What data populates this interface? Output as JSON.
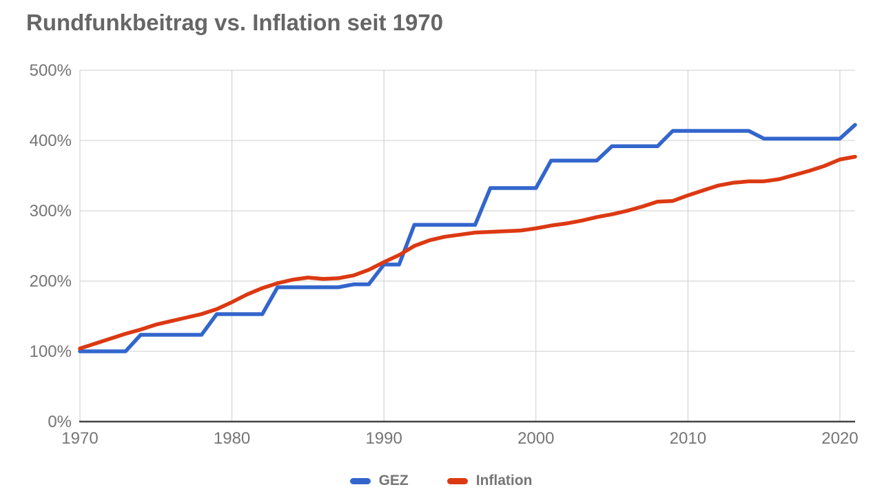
{
  "title": "Rundfunkbeitrag vs. Inflation seit 1970",
  "colors": {
    "gez_blue": "#3366cc",
    "inflation_red": "#dc3912",
    "gridline": "#cccccc",
    "axis_line": "#424242",
    "tick_text": "#757575",
    "title_text": "#666666",
    "background": "#ffffff"
  },
  "legend": {
    "position": "bottom",
    "items": [
      {
        "label": "GEZ",
        "color": "#3366cc"
      },
      {
        "label": "Inflation",
        "color": "#dc3912"
      }
    ]
  },
  "y_axis": {
    "ticks": [
      "0%",
      "100%",
      "200%",
      "300%",
      "400%",
      "500%"
    ],
    "tick_values": [
      0,
      100,
      200,
      300,
      400,
      500
    ]
  },
  "x_axis": {
    "ticks": [
      "1970",
      "1980",
      "1990",
      "2000",
      "2010",
      "2020"
    ],
    "tick_values": [
      1970,
      1980,
      1990,
      2000,
      2010,
      2020
    ]
  },
  "chart_data": {
    "type": "line",
    "title": "Rundfunkbeitrag vs. Inflation seit 1970",
    "xlabel": "",
    "ylabel": "",
    "xlim": [
      1970,
      2021
    ],
    "ylim": [
      0,
      500
    ],
    "grid": true,
    "legend_position": "bottom",
    "x": [
      1970,
      1971,
      1972,
      1973,
      1974,
      1975,
      1976,
      1977,
      1978,
      1979,
      1980,
      1981,
      1982,
      1983,
      1984,
      1985,
      1986,
      1987,
      1988,
      1989,
      1990,
      1991,
      1992,
      1993,
      1994,
      1995,
      1996,
      1997,
      1998,
      1999,
      2000,
      2001,
      2002,
      2003,
      2004,
      2005,
      2006,
      2007,
      2008,
      2009,
      2010,
      2011,
      2012,
      2013,
      2014,
      2015,
      2016,
      2017,
      2018,
      2019,
      2020,
      2021
    ],
    "series": [
      {
        "name": "GEZ",
        "color": "#3366cc",
        "unit": "% of 1970 fee",
        "values": [
          100,
          100,
          100,
          100,
          123.5,
          123.5,
          123.5,
          123.5,
          123.5,
          152.9,
          152.9,
          152.9,
          152.9,
          191.2,
          191.2,
          191.2,
          191.2,
          191.2,
          195.3,
          195.3,
          223.5,
          223.5,
          280,
          280,
          280,
          280,
          280,
          332.4,
          332.4,
          332.4,
          332.4,
          371.5,
          371.5,
          371.5,
          371.5,
          391.9,
          391.9,
          391.9,
          391.9,
          413.7,
          413.7,
          413.7,
          413.7,
          413.7,
          413.7,
          402.7,
          402.7,
          402.7,
          402.7,
          402.7,
          402.7,
          422.4
        ]
      },
      {
        "name": "Inflation",
        "color": "#dc3912",
        "unit": "% of 1970 price level",
        "values": [
          104,
          111,
          118,
          125,
          131,
          138,
          143,
          148,
          153,
          160,
          170,
          181,
          190,
          197,
          202,
          205,
          203,
          204,
          208,
          216,
          227,
          237,
          250,
          258,
          263,
          266,
          269,
          270,
          271,
          272,
          275,
          279,
          282,
          286,
          291,
          295,
          300,
          306,
          313,
          314,
          322,
          329,
          336,
          340,
          342,
          342,
          345,
          351,
          357,
          364,
          373,
          377
        ]
      }
    ]
  }
}
